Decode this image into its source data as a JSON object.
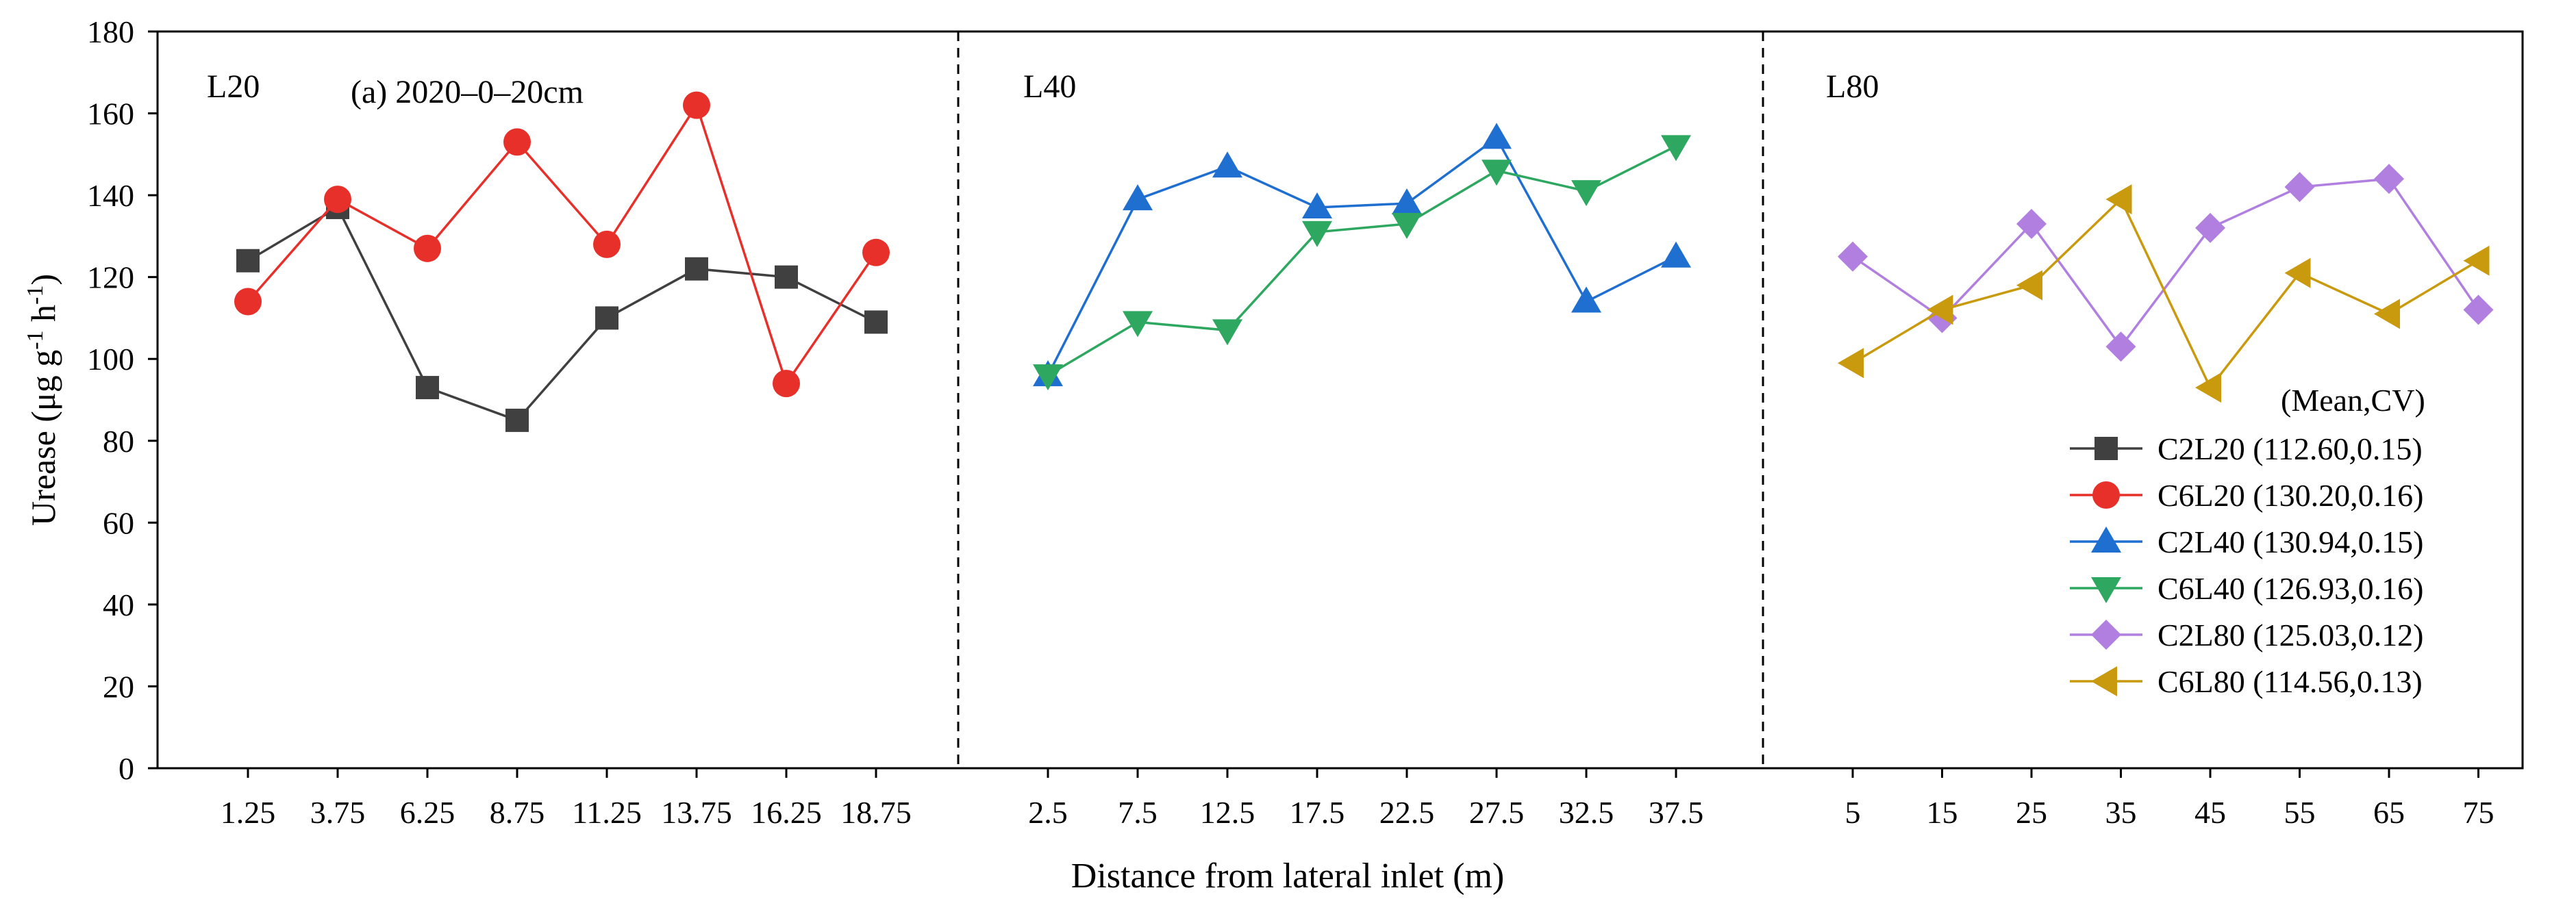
{
  "chart_data": {
    "type": "line",
    "title": "(a) 2020–0–20cm",
    "ylabel_main": "Urease (μg g",
    "ylabel_sup1": "-1",
    "ylabel_mid": " h",
    "ylabel_sup2": "-1",
    "ylabel_end": ")",
    "xlabel": "Distance from lateral inlet (m)",
    "ylim": [
      0,
      180
    ],
    "yticks": [
      "0",
      "20",
      "40",
      "60",
      "80",
      "100",
      "120",
      "140",
      "160",
      "180"
    ],
    "legend_header": "(Mean,CV)",
    "panels": [
      {
        "label": "L20",
        "categories": [
          "1.25",
          "3.75",
          "6.25",
          "8.75",
          "11.25",
          "13.75",
          "16.25",
          "18.75"
        ],
        "series": [
          {
            "name": "C2L20",
            "legend": "C2L20 (112.60,0.15)",
            "marker": "square",
            "line_color": "#404040",
            "marker_color": "#404040",
            "values": [
              124,
              137,
              93,
              85,
              110,
              122,
              120,
              109
            ]
          },
          {
            "name": "C6L20",
            "legend": "C6L20 (130.20,0.16)",
            "marker": "circle",
            "line_color": "#e8302b",
            "marker_color": "#e8302b",
            "values": [
              114,
              139,
              127,
              153,
              128,
              162,
              94,
              126
            ]
          }
        ]
      },
      {
        "label": "L40",
        "categories": [
          "2.5",
          "7.5",
          "12.5",
          "17.5",
          "22.5",
          "27.5",
          "32.5",
          "37.5"
        ],
        "series": [
          {
            "name": "C2L40",
            "legend": "C2L40 (130.94,0.15)",
            "marker": "triangle-up",
            "line_color": "#1f6fd1",
            "marker_color": "#1f6fd1",
            "values": [
              96,
              139,
              147,
              137,
              138,
              154,
              114,
              125
            ]
          },
          {
            "name": "C6L40",
            "legend": "C6L40 (126.93,0.16)",
            "marker": "triangle-down",
            "line_color": "#2ea860",
            "marker_color": "#2ea860",
            "values": [
              96,
              109,
              107,
              131,
              133,
              146,
              141,
              152
            ]
          }
        ]
      },
      {
        "label": "L80",
        "categories": [
          "5",
          "15",
          "25",
          "35",
          "45",
          "55",
          "65",
          "75"
        ],
        "series": [
          {
            "name": "C2L80",
            "legend": "C2L80 (125.03,0.12)",
            "marker": "diamond",
            "line_color": "#b07fe0",
            "marker_color": "#b07fe0",
            "values": [
              125,
              110,
              133,
              103,
              132,
              142,
              144,
              112
            ]
          },
          {
            "name": "C6L80",
            "legend": "C6L80 (114.56,0.13)",
            "marker": "triangle-left",
            "line_color": "#c99a0e",
            "marker_color": "#c99a0e",
            "values": [
              99,
              112,
              118,
              139,
              93,
              121,
              111,
              124
            ]
          }
        ]
      }
    ]
  }
}
